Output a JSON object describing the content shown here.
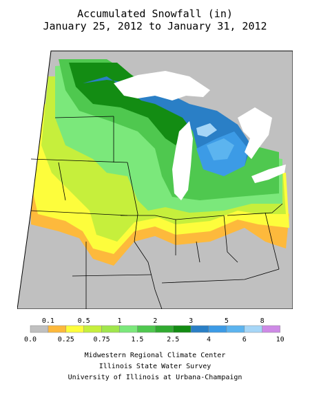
{
  "title": {
    "line1": "Accumulated Snowfall (in)",
    "line2": "January 25, 2012 to January 31, 2012"
  },
  "colors": {
    "none": "#c0c0c0",
    "trace": "#fdb93c",
    "0.25": "#fdfd3c",
    "0.5": "#c6ef3c",
    "0.75": "#a0e64c",
    "1": "#7be87b",
    "1.5": "#4fc84f",
    "2": "#31ab31",
    "2.5": "#138c13",
    "3": "#2a7fc6",
    "4": "#3c9be6",
    "5": "#5cb4ef",
    "6": "#a6d6f7",
    "8": "#ce8ae6",
    "water": "#ffffff",
    "border": "#000000"
  },
  "legend": {
    "upper_labels": [
      "0.1",
      "0.5",
      "1",
      "2",
      "3",
      "5",
      "8"
    ],
    "lower_labels": [
      "0.0",
      "0.25",
      "0.75",
      "1.5",
      "2.5",
      "4",
      "6",
      "10"
    ],
    "bins": [
      "0.0",
      "0.1",
      "0.25",
      "0.5",
      "0.75",
      "1",
      "1.5",
      "2",
      "2.5",
      "3",
      "4",
      "5",
      "6",
      "8",
      "10"
    ]
  },
  "credits": {
    "line1": "Midwestern Regional Climate Center",
    "line2": "Illinois State Water Survey",
    "line3": "University of Illinois at Urbana-Champaign"
  }
}
